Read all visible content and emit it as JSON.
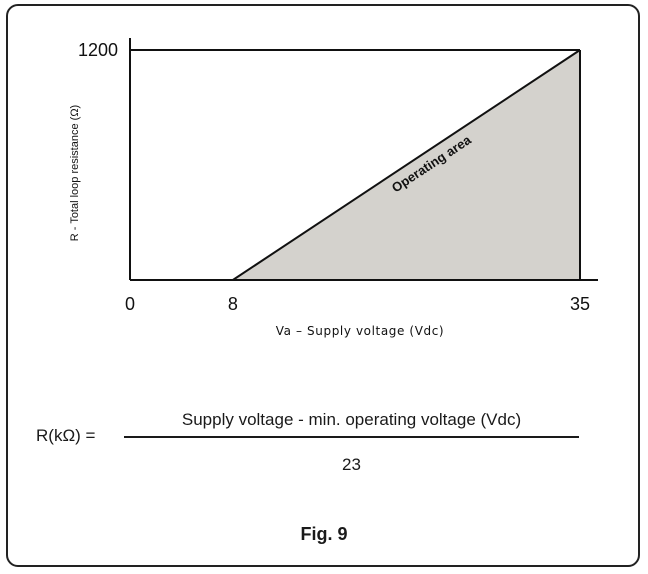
{
  "chart_data": {
    "type": "area",
    "xlabel": "Va – Supply voltage (Vdc)",
    "ylabel": "R - Total loop resistance (Ω)",
    "xlim": [
      0,
      35
    ],
    "ylim": [
      0,
      1200
    ],
    "x_ticks": [
      "0",
      "8",
      "35"
    ],
    "y_ticks": [
      "1200"
    ],
    "series": [
      {
        "x": [
          0,
          8,
          35
        ],
        "y": [
          0,
          0,
          1200
        ]
      }
    ],
    "region_label": "Operating area",
    "region_color": "#d4d2cd"
  },
  "formula": {
    "lhs": "R(kΩ) =",
    "numerator": "Supply voltage - min. operating voltage (Vdc)",
    "denominator": "23"
  },
  "figure_label": "Fig. 9"
}
